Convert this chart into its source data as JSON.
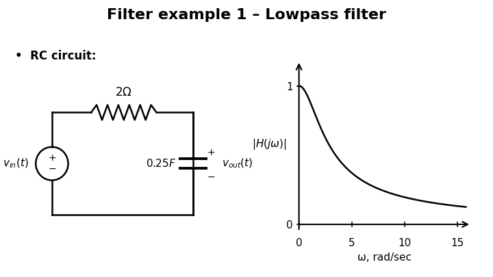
{
  "title": "Filter example 1 – Lowpass filter",
  "title_fontsize": 16,
  "background_color": "#ffffff",
  "plot_xlim": [
    -0.3,
    16.5
  ],
  "plot_ylim": [
    -0.08,
    1.22
  ],
  "plot_xticks": [
    0,
    5,
    10,
    15
  ],
  "plot_yticks": [
    0,
    1
  ],
  "xlabel": "ω, rad/sec",
  "R": 2.0,
  "C": 0.25,
  "curve_color": "#000000"
}
